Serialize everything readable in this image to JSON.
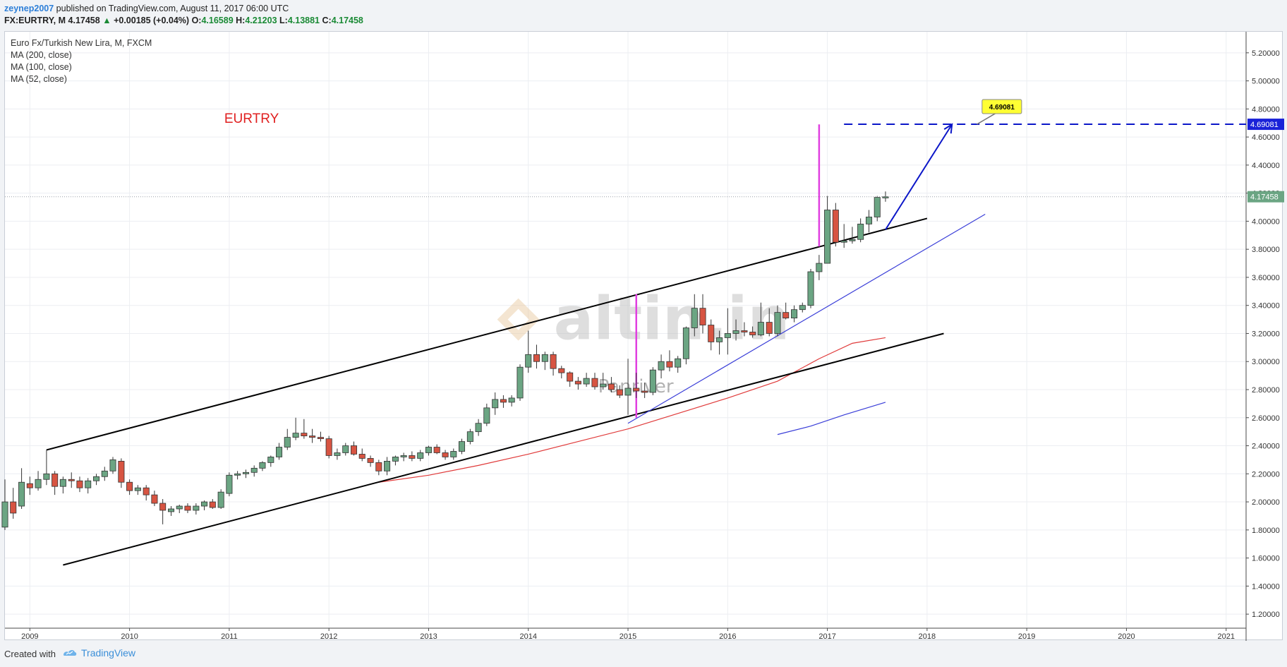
{
  "header": {
    "author": "zeynep2007",
    "published_text": "published on TradingView.com, August 11, 2017 06:00 UTC",
    "symbol": "FX:EURTRY, M",
    "last": "4.17458",
    "change": "+0.00185 (+0.04%)",
    "o_label": "O:",
    "o": "4.16589",
    "h_label": "H:",
    "h": "4.21203",
    "l_label": "L:",
    "l": "4.13881",
    "c_label": "C:",
    "c": "4.17458"
  },
  "footer": {
    "created_with": "Created with",
    "brand": "TradingView"
  },
  "chart_data": {
    "type": "candlestick",
    "legend": [
      "Euro Fx/Turkish New Lira, M, FXCM",
      "MA (200, close)",
      "MA (100, close)",
      "MA (52, close)"
    ],
    "annotation_text": "EURTRY",
    "watermark": "altin.in",
    "watermark_sub": "Panriver",
    "ylim": [
      1.1,
      5.35
    ],
    "xlim": [
      2008.75,
      2021.2
    ],
    "y_ticks": [
      "1.20000",
      "1.40000",
      "1.60000",
      "1.80000",
      "2.00000",
      "2.20000",
      "2.40000",
      "2.60000",
      "2.80000",
      "3.00000",
      "3.20000",
      "3.40000",
      "3.60000",
      "3.80000",
      "4.00000",
      "4.20000",
      "4.40000",
      "4.60000",
      "4.80000",
      "5.00000",
      "5.20000"
    ],
    "x_ticks": [
      "2009",
      "2010",
      "2011",
      "2012",
      "2013",
      "2014",
      "2015",
      "2016",
      "2017",
      "2018",
      "2019",
      "2020",
      "2021"
    ],
    "last_price_label": "4.17458",
    "target_price_label": "4.69081",
    "target_callout": "4.69081",
    "target_value": 4.69081,
    "last_value": 4.17458,
    "colors": {
      "up": "#6ba583",
      "down": "#d75442",
      "channel": "#000000",
      "target": "#0b16c8",
      "ma_red": "#e03a3a",
      "ma_blue": "#3a3ed8",
      "vline": "#e040e0",
      "callout": "#ffff33"
    },
    "candles": [
      [
        2008.75,
        1.82,
        2.16,
        1.8,
        2.0
      ],
      [
        2008.833,
        2.0,
        2.1,
        1.88,
        1.92
      ],
      [
        2008.917,
        1.97,
        2.24,
        1.95,
        2.14
      ],
      [
        2009.0,
        2.13,
        2.18,
        2.05,
        2.1
      ],
      [
        2009.083,
        2.1,
        2.22,
        2.08,
        2.16
      ],
      [
        2009.167,
        2.16,
        2.37,
        2.12,
        2.2
      ],
      [
        2009.25,
        2.2,
        2.22,
        2.05,
        2.11
      ],
      [
        2009.333,
        2.11,
        2.18,
        2.06,
        2.16
      ],
      [
        2009.417,
        2.16,
        2.21,
        2.1,
        2.15
      ],
      [
        2009.5,
        2.15,
        2.18,
        2.07,
        2.1
      ],
      [
        2009.583,
        2.1,
        2.17,
        2.06,
        2.15
      ],
      [
        2009.667,
        2.15,
        2.2,
        2.12,
        2.18
      ],
      [
        2009.75,
        2.18,
        2.25,
        2.15,
        2.22
      ],
      [
        2009.833,
        2.22,
        2.32,
        2.2,
        2.3
      ],
      [
        2009.917,
        2.29,
        2.31,
        2.1,
        2.14
      ],
      [
        2010.0,
        2.14,
        2.16,
        2.05,
        2.08
      ],
      [
        2010.083,
        2.08,
        2.12,
        2.05,
        2.1
      ],
      [
        2010.167,
        2.1,
        2.12,
        2.01,
        2.05
      ],
      [
        2010.25,
        2.05,
        2.08,
        1.97,
        1.99
      ],
      [
        2010.333,
        1.99,
        2.02,
        1.84,
        1.94
      ],
      [
        2010.417,
        1.93,
        1.97,
        1.9,
        1.95
      ],
      [
        2010.5,
        1.95,
        1.98,
        1.92,
        1.97
      ],
      [
        2010.583,
        1.97,
        1.99,
        1.92,
        1.94
      ],
      [
        2010.667,
        1.94,
        1.99,
        1.91,
        1.97
      ],
      [
        2010.75,
        1.97,
        2.01,
        1.94,
        2.0
      ],
      [
        2010.833,
        2.0,
        2.02,
        1.95,
        1.96
      ],
      [
        2010.917,
        1.96,
        2.09,
        1.95,
        2.07
      ],
      [
        2011.0,
        2.06,
        2.21,
        2.04,
        2.19
      ],
      [
        2011.083,
        2.19,
        2.22,
        2.16,
        2.2
      ],
      [
        2011.167,
        2.2,
        2.23,
        2.17,
        2.21
      ],
      [
        2011.25,
        2.21,
        2.26,
        2.18,
        2.24
      ],
      [
        2011.333,
        2.24,
        2.29,
        2.22,
        2.28
      ],
      [
        2011.417,
        2.28,
        2.33,
        2.25,
        2.32
      ],
      [
        2011.5,
        2.32,
        2.42,
        2.3,
        2.39
      ],
      [
        2011.583,
        2.39,
        2.52,
        2.37,
        2.46
      ],
      [
        2011.667,
        2.46,
        2.6,
        2.44,
        2.49
      ],
      [
        2011.75,
        2.49,
        2.59,
        2.45,
        2.47
      ],
      [
        2011.833,
        2.47,
        2.52,
        2.42,
        2.46
      ],
      [
        2011.917,
        2.46,
        2.5,
        2.43,
        2.45
      ],
      [
        2012.0,
        2.45,
        2.47,
        2.31,
        2.33
      ],
      [
        2012.083,
        2.33,
        2.38,
        2.3,
        2.35
      ],
      [
        2012.167,
        2.35,
        2.42,
        2.33,
        2.4
      ],
      [
        2012.25,
        2.4,
        2.43,
        2.33,
        2.34
      ],
      [
        2012.333,
        2.34,
        2.38,
        2.29,
        2.31
      ],
      [
        2012.417,
        2.31,
        2.33,
        2.25,
        2.28
      ],
      [
        2012.5,
        2.28,
        2.3,
        2.19,
        2.22
      ],
      [
        2012.583,
        2.22,
        2.32,
        2.19,
        2.29
      ],
      [
        2012.667,
        2.29,
        2.33,
        2.26,
        2.32
      ],
      [
        2012.75,
        2.32,
        2.35,
        2.29,
        2.33
      ],
      [
        2012.833,
        2.33,
        2.36,
        2.29,
        2.31
      ],
      [
        2012.917,
        2.31,
        2.37,
        2.29,
        2.35
      ],
      [
        2013.0,
        2.35,
        2.4,
        2.33,
        2.39
      ],
      [
        2013.083,
        2.39,
        2.41,
        2.34,
        2.35
      ],
      [
        2013.167,
        2.35,
        2.37,
        2.3,
        2.32
      ],
      [
        2013.25,
        2.32,
        2.38,
        2.3,
        2.36
      ],
      [
        2013.333,
        2.36,
        2.45,
        2.34,
        2.43
      ],
      [
        2013.417,
        2.43,
        2.52,
        2.41,
        2.5
      ],
      [
        2013.5,
        2.5,
        2.59,
        2.47,
        2.56
      ],
      [
        2013.583,
        2.56,
        2.7,
        2.54,
        2.67
      ],
      [
        2013.667,
        2.67,
        2.78,
        2.62,
        2.73
      ],
      [
        2013.75,
        2.73,
        2.76,
        2.67,
        2.71
      ],
      [
        2013.833,
        2.71,
        2.76,
        2.68,
        2.74
      ],
      [
        2013.917,
        2.74,
        2.98,
        2.72,
        2.96
      ],
      [
        2014.0,
        2.96,
        3.22,
        2.92,
        3.05
      ],
      [
        2014.083,
        3.05,
        3.12,
        2.95,
        3.0
      ],
      [
        2014.167,
        3.0,
        3.07,
        2.94,
        3.05
      ],
      [
        2014.25,
        3.05,
        3.07,
        2.9,
        2.95
      ],
      [
        2014.333,
        2.95,
        2.97,
        2.88,
        2.92
      ],
      [
        2014.417,
        2.92,
        2.93,
        2.82,
        2.86
      ],
      [
        2014.5,
        2.86,
        2.89,
        2.8,
        2.84
      ],
      [
        2014.583,
        2.84,
        2.92,
        2.82,
        2.88
      ],
      [
        2014.667,
        2.88,
        2.92,
        2.8,
        2.82
      ],
      [
        2014.75,
        2.82,
        2.92,
        2.8,
        2.84
      ],
      [
        2014.833,
        2.84,
        2.89,
        2.78,
        2.8
      ],
      [
        2014.917,
        2.8,
        2.83,
        2.74,
        2.76
      ],
      [
        2015.0,
        2.76,
        3.02,
        2.62,
        2.81
      ],
      [
        2015.083,
        2.81,
        2.92,
        2.74,
        2.79
      ],
      [
        2015.167,
        2.79,
        2.85,
        2.74,
        2.78
      ],
      [
        2015.25,
        2.78,
        2.96,
        2.76,
        2.94
      ],
      [
        2015.333,
        2.94,
        3.05,
        2.88,
        3.0
      ],
      [
        2015.417,
        3.0,
        3.08,
        2.93,
        2.96
      ],
      [
        2015.5,
        2.96,
        3.04,
        2.92,
        3.02
      ],
      [
        2015.583,
        3.02,
        3.25,
        2.98,
        3.24
      ],
      [
        2015.667,
        3.24,
        3.48,
        3.18,
        3.38
      ],
      [
        2015.75,
        3.38,
        3.48,
        3.2,
        3.26
      ],
      [
        2015.833,
        3.26,
        3.3,
        3.08,
        3.14
      ],
      [
        2015.917,
        3.14,
        3.22,
        3.05,
        3.17
      ],
      [
        2016.0,
        3.17,
        3.38,
        3.05,
        3.2
      ],
      [
        2016.083,
        3.2,
        3.3,
        3.15,
        3.22
      ],
      [
        2016.167,
        3.22,
        3.28,
        3.18,
        3.21
      ],
      [
        2016.25,
        3.21,
        3.25,
        3.17,
        3.19
      ],
      [
        2016.333,
        3.19,
        3.42,
        3.18,
        3.28
      ],
      [
        2016.417,
        3.28,
        3.38,
        3.18,
        3.2
      ],
      [
        2016.5,
        3.2,
        3.4,
        3.18,
        3.35
      ],
      [
        2016.583,
        3.35,
        3.42,
        3.3,
        3.31
      ],
      [
        2016.667,
        3.31,
        3.4,
        3.28,
        3.37
      ],
      [
        2016.75,
        3.37,
        3.42,
        3.35,
        3.4
      ],
      [
        2016.833,
        3.4,
        3.66,
        3.38,
        3.64
      ],
      [
        2016.917,
        3.64,
        3.76,
        3.58,
        3.7
      ],
      [
        2017.0,
        3.7,
        4.18,
        3.7,
        4.08
      ],
      [
        2017.083,
        4.08,
        4.13,
        3.82,
        3.85
      ],
      [
        2017.167,
        3.85,
        3.98,
        3.81,
        3.86
      ],
      [
        2017.25,
        3.86,
        3.96,
        3.84,
        3.87
      ],
      [
        2017.333,
        3.87,
        4.02,
        3.85,
        3.98
      ],
      [
        2017.417,
        3.98,
        4.08,
        3.92,
        4.03
      ],
      [
        2017.5,
        4.03,
        4.18,
        4.0,
        4.17
      ],
      [
        2017.583,
        4.16589,
        4.21203,
        4.13881,
        4.17458
      ]
    ],
    "ma_red": [
      [
        2012.5,
        2.14
      ],
      [
        2013.0,
        2.19
      ],
      [
        2013.5,
        2.26
      ],
      [
        2014.0,
        2.34
      ],
      [
        2014.5,
        2.43
      ],
      [
        2015.0,
        2.52
      ],
      [
        2015.5,
        2.63
      ],
      [
        2016.0,
        2.74
      ],
      [
        2016.5,
        2.86
      ],
      [
        2016.917,
        3.02
      ],
      [
        2017.25,
        3.13
      ],
      [
        2017.583,
        3.17
      ]
    ],
    "ma_blue": [
      [
        2016.5,
        2.48
      ],
      [
        2016.833,
        2.54
      ],
      [
        2017.167,
        2.62
      ],
      [
        2017.583,
        2.71
      ]
    ],
    "channel_upper": [
      [
        2009.167,
        2.37
      ],
      [
        2018.0,
        4.02
      ]
    ],
    "channel_lower": [
      [
        2009.333,
        1.55
      ],
      [
        2018.167,
        3.2
      ]
    ],
    "blue_trendline": [
      [
        2015.0,
        2.56
      ],
      [
        2018.583,
        4.05
      ]
    ],
    "vlines": [
      [
        2015.083,
        2.6,
        3.48
      ],
      [
        2016.917,
        3.82,
        4.69
      ]
    ],
    "target_arrow": [
      [
        2017.583,
        3.94
      ],
      [
        2018.25,
        4.69
      ]
    ],
    "target_line_start": 2017.167
  }
}
